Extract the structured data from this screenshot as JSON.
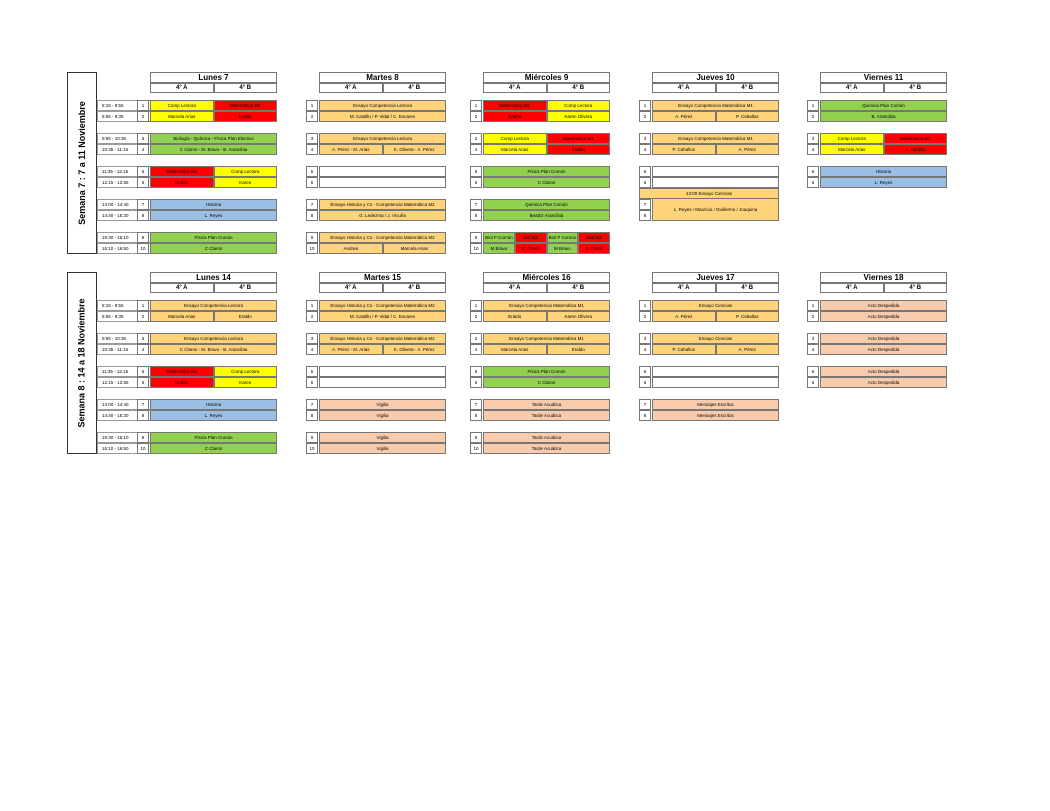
{
  "groups": {
    "a": "4° A",
    "b": "4° B"
  },
  "colors": {
    "yellow": "#ffff00",
    "red": "#ff0000",
    "green": "#92d050",
    "blue": "#9bbfe4",
    "orange": "#ffd37a",
    "peach": "#f8cbad"
  },
  "weeks": [
    {
      "label": "Semana 7 : 7 a 11 Noviembre",
      "times": [
        "8:15 - 8:55",
        "8:55 - 9:35",
        "9:55 - 10:35",
        "10:35 - 11:15",
        "11:35 - 12:15",
        "12:15 - 12:55",
        "14:00 - 14:40",
        "14:40 - 15:20",
        "15:30 - 16:10",
        "16:10 - 16:50"
      ],
      "days": [
        {
          "title": "Lunes 7",
          "rows": [
            {
              "n": "1",
              "a": "Comp Lectora",
              "ac": "y",
              "b": "Matemática M1",
              "bc": "r"
            },
            {
              "n": "2",
              "a": "Marcela Arias",
              "ac": "y",
              "b": "Eraldo",
              "bc": "r"
            },
            {
              "n": "3",
              "full": "Biología - Química - Física Plan Electivo",
              "fc": "g"
            },
            {
              "n": "4",
              "full": "C Claros - M. Bravo - B. Arancibia",
              "fc": "g"
            },
            {
              "n": "5",
              "a": "Matemática M1",
              "ac": "r",
              "b": "Comp Lectora",
              "bc": "y"
            },
            {
              "n": "6",
              "a": "Eraldo",
              "ac": "r",
              "b": "Karen",
              "bc": "y"
            },
            {
              "n": "7",
              "full": "Historia",
              "fc": "b"
            },
            {
              "n": "8",
              "full": "L. Reyes",
              "fc": "b"
            },
            {
              "n": "9",
              "full": "Física Plan Común",
              "fc": "g"
            },
            {
              "n": "10",
              "full": "C Claros",
              "fc": "g"
            }
          ]
        },
        {
          "title": "Martes 8",
          "rows": [
            {
              "n": "1",
              "full": "Ensayo Competencia Lectora",
              "fc": "o"
            },
            {
              "n": "2",
              "full": "M. Castillo / P. Vidal / C. Escares",
              "fc": "o"
            },
            {
              "n": "3",
              "full": "Ensayo Competencia Lectora",
              "fc": "o"
            },
            {
              "n": "4",
              "a": "A. Pérez - M. Arias",
              "ac": "o",
              "b": "K. Olivera - A. Pérez",
              "bc": "o"
            },
            {
              "n": "5",
              "full": "",
              "fc": "w"
            },
            {
              "n": "6",
              "full": "",
              "fc": "w"
            },
            {
              "n": "7",
              "full": "Ensayo Historia y Cs - Competencia Matemática M2",
              "fc": "o"
            },
            {
              "n": "8",
              "full": "G. Ledezma / J. Vicuña",
              "fc": "o"
            },
            {
              "n": "9",
              "full": "Ensayo Historia y Cs - Competencia Matemática M2",
              "fc": "o"
            },
            {
              "n": "10",
              "a": "Andrea",
              "ac": "o",
              "b": "Marcela Arias",
              "bc": "o"
            }
          ]
        },
        {
          "title": "Miércoles 9",
          "rows": [
            {
              "n": "1",
              "a": "Matemática M1",
              "ac": "r",
              "b": "Comp Lectora",
              "bc": "y"
            },
            {
              "n": "2",
              "a": "Eraldo",
              "ac": "r",
              "b": "Karen Olivera",
              "bc": "y"
            },
            {
              "n": "3",
              "a": "Comp Lectora",
              "ac": "y",
              "b": "Matemática M1",
              "bc": "r"
            },
            {
              "n": "4",
              "a": "Marcela Arias",
              "ac": "y",
              "b": "Eraldo",
              "bc": "r"
            },
            {
              "n": "5",
              "full": "Física Plan Común",
              "fc": "g"
            },
            {
              "n": "6",
              "full": "C Claros",
              "fc": "g"
            },
            {
              "n": "7",
              "full": "Química Plan Común",
              "fc": "g"
            },
            {
              "n": "8",
              "full": "Beatriz Arancibia",
              "fc": "g"
            },
            {
              "n": "9",
              "quad": [
                [
                  "Biol P Común",
                  "g"
                ],
                [
                  "Mat M2",
                  "r"
                ],
                [
                  "Biol P Común",
                  "g"
                ],
                [
                  "Mat M2",
                  "r"
                ]
              ]
            },
            {
              "n": "10",
              "quad": [
                [
                  "M Bravo",
                  "g"
                ],
                [
                  "C Cherri",
                  "r"
                ],
                [
                  "M Bravo",
                  "g"
                ],
                [
                  "C Cherri",
                  "r"
                ]
              ]
            }
          ]
        },
        {
          "title": "Jueves 10",
          "rows": [
            {
              "n": "1",
              "full": "Ensayo Competencia Matemática M1",
              "fc": "o"
            },
            {
              "n": "2",
              "a": "A. Pérez",
              "ac": "o",
              "b": "P. Ceballos",
              "bc": "o"
            },
            {
              "n": "3",
              "full": "Ensayo Competencia Matemática M1",
              "fc": "o"
            },
            {
              "n": "4",
              "a": "P. Ceballos",
              "ac": "o",
              "b": "A. Pérez",
              "bc": "o"
            },
            {
              "n": "5",
              "full": "",
              "fc": "w"
            },
            {
              "n": "6",
              "full": "",
              "fc": "w"
            }
          ],
          "special": {
            "title": "13:00 Ensayo Ciencias",
            "body": "L. Reyes / Mauricio / Guillermo / Joaquina",
            "n1": "7",
            "n2": "8"
          }
        },
        {
          "title": "Viernes 11",
          "rows": [
            {
              "n": "1",
              "full": "Química Plan Común",
              "fc": "g"
            },
            {
              "n": "2",
              "full": "B. Arancibia",
              "fc": "g"
            },
            {
              "n": "3",
              "a": "Comp Lectora",
              "ac": "y",
              "b": "Matemática M1",
              "bc": "r"
            },
            {
              "n": "4",
              "a": "Marcela Arias",
              "ac": "y",
              "b": "A. Castillo",
              "bc": "r"
            },
            {
              "n": "5",
              "full": "Historia",
              "fc": "b"
            },
            {
              "n": "6",
              "full": "L. Reyes",
              "fc": "b"
            }
          ]
        }
      ]
    },
    {
      "label": "Semana 8 : 14 a 18 Noviembre",
      "times": [
        "8:15 - 8:55",
        "8:55 - 9:35",
        "9:55 - 10:35",
        "10:35 - 11:15",
        "11:35 - 12:15",
        "12:15 - 12:55",
        "14:00 - 14:40",
        "14:40 - 15:20",
        "15:30 - 16:10",
        "16:10 - 16:50"
      ],
      "days": [
        {
          "title": "Lunes 14",
          "rows": [
            {
              "n": "1",
              "full": "Ensayo Competencia Lectora",
              "fc": "o"
            },
            {
              "n": "2",
              "a": "Marcela Arias",
              "ac": "o",
              "b": "Eraldo",
              "bc": "o"
            },
            {
              "n": "3",
              "full": "Ensayo Competencia Lectora",
              "fc": "o"
            },
            {
              "n": "4",
              "full": "C Claros - M. Bravo - B. Arancibia",
              "fc": "o"
            },
            {
              "n": "5",
              "a": "Matemática M1",
              "ac": "r",
              "b": "Comp Lectora",
              "bc": "y"
            },
            {
              "n": "6",
              "a": "Eraldo",
              "ac": "r",
              "b": "Karen",
              "bc": "y"
            },
            {
              "n": "7",
              "full": "Historia",
              "fc": "b"
            },
            {
              "n": "8",
              "full": "L. Reyes",
              "fc": "b"
            },
            {
              "n": "9",
              "full": "Física Plan Común",
              "fc": "g"
            },
            {
              "n": "10",
              "full": "C Claros",
              "fc": "g"
            }
          ]
        },
        {
          "title": "Martes 15",
          "rows": [
            {
              "n": "1",
              "full": "Ensayo Historia y Cs - Competencia Matemática M2",
              "fc": "o"
            },
            {
              "n": "2",
              "full": "M. Castillo / P. Vidal / C. Escares",
              "fc": "o"
            },
            {
              "n": "3",
              "full": "Ensayo Historia y Cs - Competencia Matemática M2",
              "fc": "o"
            },
            {
              "n": "4",
              "a": "A. Pérez - M. Arias",
              "ac": "o",
              "b": "K. Olivera - A. Pérez",
              "bc": "o"
            },
            {
              "n": "5",
              "full": "",
              "fc": "w"
            },
            {
              "n": "6",
              "full": "",
              "fc": "w"
            },
            {
              "n": "7",
              "full": "Vigilia",
              "fc": "p"
            },
            {
              "n": "8",
              "full": "Vigilia",
              "fc": "p"
            },
            {
              "n": "9",
              "full": "Vigilia",
              "fc": "p"
            },
            {
              "n": "10",
              "full": "Vigilia",
              "fc": "p"
            }
          ]
        },
        {
          "title": "Miércoles 16",
          "rows": [
            {
              "n": "1",
              "full": "Ensayo Competencia Matemática M1",
              "fc": "o"
            },
            {
              "n": "2",
              "a": "Eraldo",
              "ac": "o",
              "b": "Karen Olivera",
              "bc": "o"
            },
            {
              "n": "3",
              "full": "Ensayo Competencia Matemática M1",
              "fc": "o"
            },
            {
              "n": "4",
              "a": "Marcela Arias",
              "ac": "o",
              "b": "Eraldo",
              "bc": "o"
            },
            {
              "n": "5",
              "full": "Física Plan Común",
              "fc": "g"
            },
            {
              "n": "6",
              "full": "C Claros",
              "fc": "g"
            },
            {
              "n": "7",
              "full": "Tarde Acuática",
              "fc": "p"
            },
            {
              "n": "8",
              "full": "Tarde Acuática",
              "fc": "p"
            },
            {
              "n": "9",
              "full": "Tarde Acuática",
              "fc": "p"
            },
            {
              "n": "10",
              "full": "Tarde Acuática",
              "fc": "p"
            }
          ]
        },
        {
          "title": "Jueves 17",
          "rows": [
            {
              "n": "1",
              "full": "Ensayo Ciencias",
              "fc": "o"
            },
            {
              "n": "2",
              "a": "A. Pérez",
              "ac": "o",
              "b": "P. Ceballos",
              "bc": "o"
            },
            {
              "n": "3",
              "full": "Ensayo Ciencias",
              "fc": "o"
            },
            {
              "n": "4",
              "a": "P. Ceballos",
              "ac": "o",
              "b": "A. Pérez",
              "bc": "o"
            },
            {
              "n": "5",
              "full": "",
              "fc": "w"
            },
            {
              "n": "6",
              "full": "",
              "fc": "w"
            },
            {
              "n": "7",
              "full": "Mensajes Escritos",
              "fc": "p"
            },
            {
              "n": "8",
              "full": "Mensajes Escritos",
              "fc": "p"
            }
          ]
        },
        {
          "title": "Viernes 18",
          "rows": [
            {
              "n": "1",
              "full": "Acto Despedida",
              "fc": "p"
            },
            {
              "n": "2",
              "full": "Acto Despedida",
              "fc": "p"
            },
            {
              "n": "3",
              "full": "Acto Despedida",
              "fc": "p"
            },
            {
              "n": "4",
              "full": "Acto Despedida",
              "fc": "p"
            },
            {
              "n": "5",
              "full": "Acto Despedida",
              "fc": "p"
            },
            {
              "n": "6",
              "full": "Acto Despedida",
              "fc": "p"
            }
          ]
        }
      ]
    }
  ]
}
